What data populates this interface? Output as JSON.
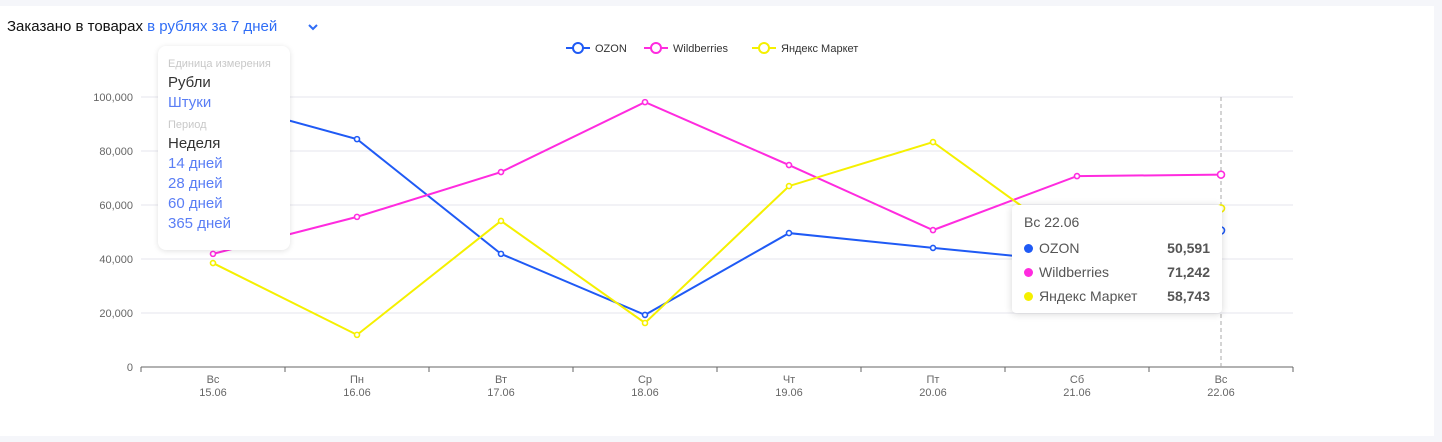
{
  "header": {
    "title_prefix": "Заказано в товарах",
    "title_selector": "в рублях за 7 дней"
  },
  "dropdown": {
    "unit_header": "Единица измерения",
    "units": [
      {
        "label": "Рубли",
        "active": true
      },
      {
        "label": "Штуки",
        "active": false
      }
    ],
    "period_header": "Период",
    "periods": [
      {
        "label": "Неделя",
        "active": true
      },
      {
        "label": "14 дней",
        "active": false
      },
      {
        "label": "28 дней",
        "active": false
      },
      {
        "label": "60 дней",
        "active": false
      },
      {
        "label": "365 дней",
        "active": false
      }
    ]
  },
  "tooltip": {
    "date": "Вс 22.06",
    "rows": [
      {
        "name": "OZON",
        "value": "50,591"
      },
      {
        "name": "Wildberries",
        "value": "71,242"
      },
      {
        "name": "Яндекс Маркет",
        "value": "58,743"
      }
    ]
  },
  "chart_data": {
    "type": "line",
    "title": "Заказано в товарах в рублях за 7 дней",
    "x_days": [
      "Вс",
      "Пн",
      "Вт",
      "Ср",
      "Чт",
      "Пт",
      "Сб",
      "Вс"
    ],
    "x_dates": [
      "15.06",
      "16.06",
      "17.06",
      "18.06",
      "19.06",
      "20.06",
      "21.06",
      "22.06"
    ],
    "ylim": [
      0,
      100000
    ],
    "yticks": [
      "0",
      "20,000",
      "40,000",
      "60,000",
      "80,000",
      "100,000"
    ],
    "ytick_values": [
      0,
      20000,
      40000,
      60000,
      80000,
      100000
    ],
    "legend_position": "top-center",
    "grid": true,
    "series": [
      {
        "name": "OZON",
        "color": "#1f5af5",
        "values": [
          99000,
          84400,
          41900,
          19300,
          49600,
          44100,
          38900,
          50591
        ]
      },
      {
        "name": "Wildberries",
        "color": "#ff2bdf",
        "values": [
          41900,
          55600,
          72200,
          98100,
          74800,
          50700,
          70700,
          71242
        ]
      },
      {
        "name": "Яндекс Маркет",
        "color": "#f5f000",
        "values": [
          38500,
          11900,
          54100,
          16300,
          67000,
          83300,
          44800,
          58743
        ]
      }
    ]
  }
}
